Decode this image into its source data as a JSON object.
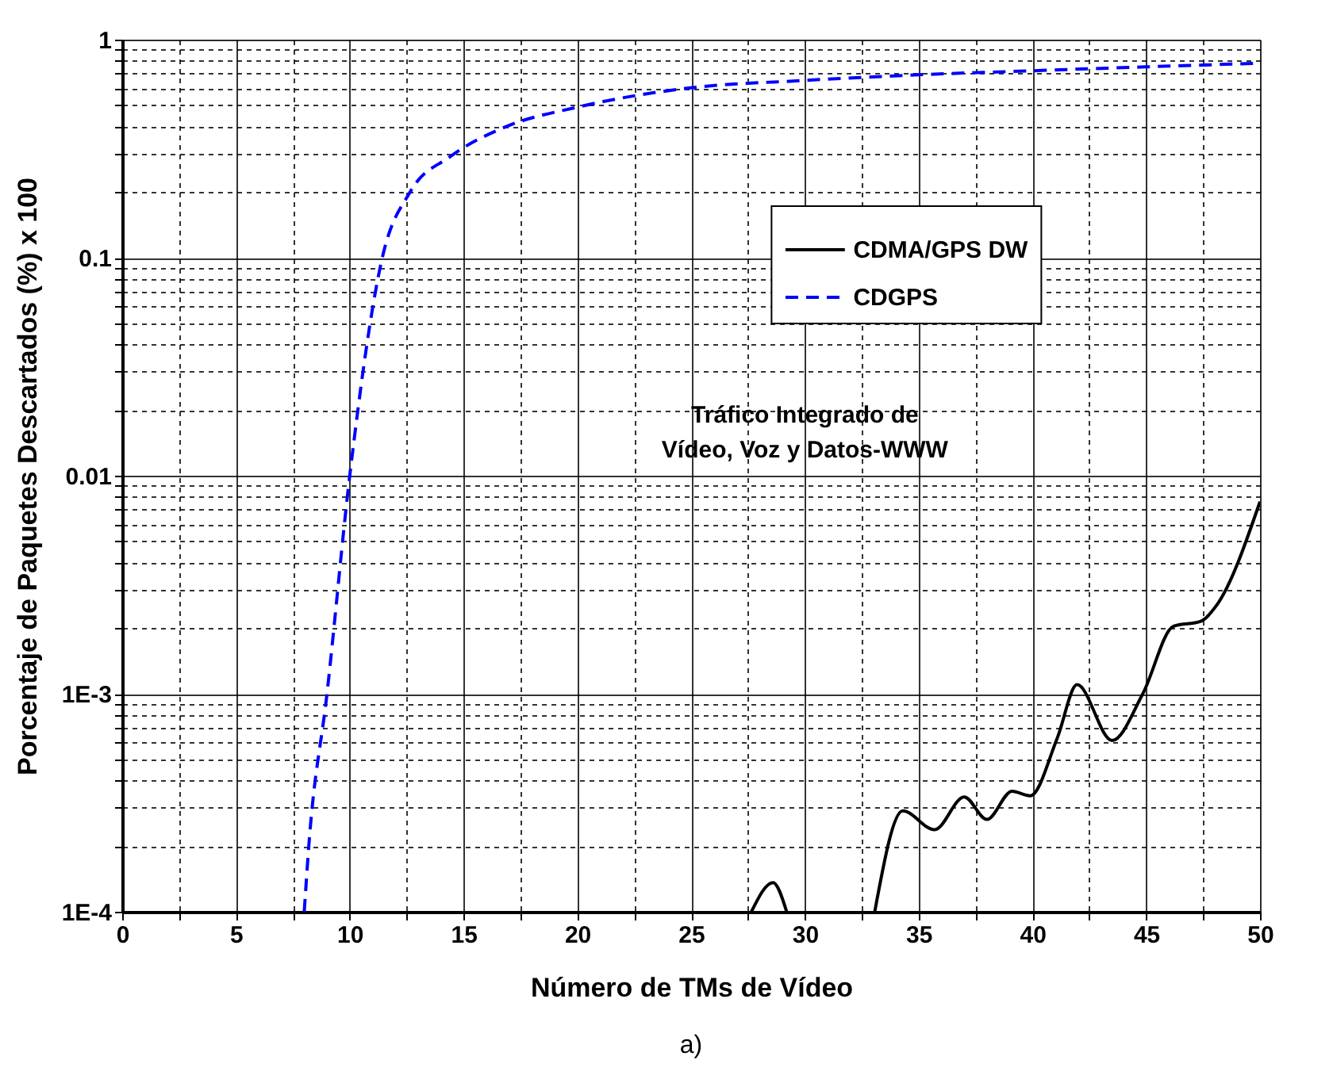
{
  "chart_data": {
    "type": "line",
    "xlabel": "Número de TMs de Vídeo",
    "ylabel": "Porcentaje de Paquetes Descartados (%) x 100",
    "log": true,
    "grid": true,
    "legend": "top right",
    "xlim": [
      0,
      50
    ],
    "xticks": [
      0,
      {
        "value": 2.5,
        "label": null
      },
      5,
      {
        "value": 7.5,
        "label": null
      },
      10,
      {
        "value": 12.5,
        "label": null
      },
      15,
      {
        "value": 17.5,
        "label": null
      },
      20,
      {
        "value": 22.5,
        "label": null
      },
      25,
      {
        "value": 27.5,
        "label": null
      },
      30,
      {
        "value": 32.5,
        "label": null
      },
      35,
      {
        "value": 37.5,
        "label": null
      },
      40,
      {
        "value": 42.5,
        "label": null
      },
      45,
      {
        "value": 47.5,
        "label": null
      },
      50
    ],
    "ylim": [
      0.0001,
      1
    ],
    "yticks": [
      {
        "value": 0.0001,
        "label": "1E-4"
      },
      {
        "value": 0.0002,
        "label": null
      },
      {
        "value": 0.0003,
        "label": null
      },
      {
        "value": 0.0004,
        "label": null
      },
      {
        "value": 0.0005,
        "label": null
      },
      {
        "value": 0.0006,
        "label": null
      },
      {
        "value": 0.0007,
        "label": null
      },
      {
        "value": 0.0008,
        "label": null
      },
      {
        "value": 0.0009,
        "label": null
      },
      {
        "value": 0.001,
        "label": "1E-3"
      },
      {
        "value": 0.002,
        "label": null
      },
      {
        "value": 0.003,
        "label": null
      },
      {
        "value": 0.004,
        "label": null
      },
      {
        "value": 0.005,
        "label": null
      },
      {
        "value": 0.006,
        "label": null
      },
      {
        "value": 0.007,
        "label": null
      },
      {
        "value": 0.008,
        "label": null
      },
      {
        "value": 0.009,
        "label": null
      },
      0.01,
      {
        "value": 0.02,
        "label": null
      },
      {
        "value": 0.03,
        "label": null
      },
      {
        "value": 0.04,
        "label": null
      },
      {
        "value": 0.05,
        "label": null
      },
      {
        "value": 0.06,
        "label": null
      },
      {
        "value": 0.07,
        "label": null
      },
      {
        "value": 0.08,
        "label": null
      },
      {
        "value": 0.09,
        "label": null
      },
      0.1,
      {
        "value": 0.2,
        "label": null
      },
      {
        "value": 0.3,
        "label": null
      },
      {
        "value": 0.4,
        "label": null
      },
      {
        "value": 0.5,
        "label": null
      },
      {
        "value": 0.6,
        "label": null
      },
      {
        "value": 0.7,
        "label": null
      },
      {
        "value": 0.8,
        "label": null
      },
      {
        "value": 0.9,
        "label": null
      },
      1
    ],
    "series": [
      {
        "name": "CDMA/GPS DW",
        "color": "#000000",
        "line_style": "solid",
        "x": [
          27.65,
          28.6,
          29.2,
          31,
          33.07,
          34.3,
          35.7,
          37.0,
          38.0,
          39.1,
          39.9,
          41.1,
          41.96,
          43.5,
          44.85,
          46.2,
          47.4,
          48.1,
          50
        ],
        "values": [
          0.0001,
          0.000136,
          0.0001,
          null,
          0.0001,
          0.00029,
          0.000238,
          0.000336,
          0.000265,
          0.000357,
          0.00034,
          0.00063,
          0.0011,
          0.00061,
          0.001,
          0.00204,
          0.00215,
          0.00255,
          0.0076
        ]
      },
      {
        "name": "CDGPS",
        "color": "#0000ff",
        "line_style": "dashed",
        "x": [
          8,
          8.2,
          9.0,
          10.0,
          11.43,
          12.65,
          14.4,
          16.9,
          20,
          24.9,
          30,
          35,
          40,
          45,
          50
        ],
        "values": [
          0.0001,
          0.0002,
          0.001,
          0.01,
          0.1,
          0.2,
          0.29,
          0.4,
          0.49,
          0.6,
          0.65,
          0.69,
          0.72,
          0.75,
          0.78
        ]
      }
    ],
    "annotations": [
      "Tráfico Integrado de\nVídeo, Voz y Datos-WWW",
      "a)"
    ]
  }
}
